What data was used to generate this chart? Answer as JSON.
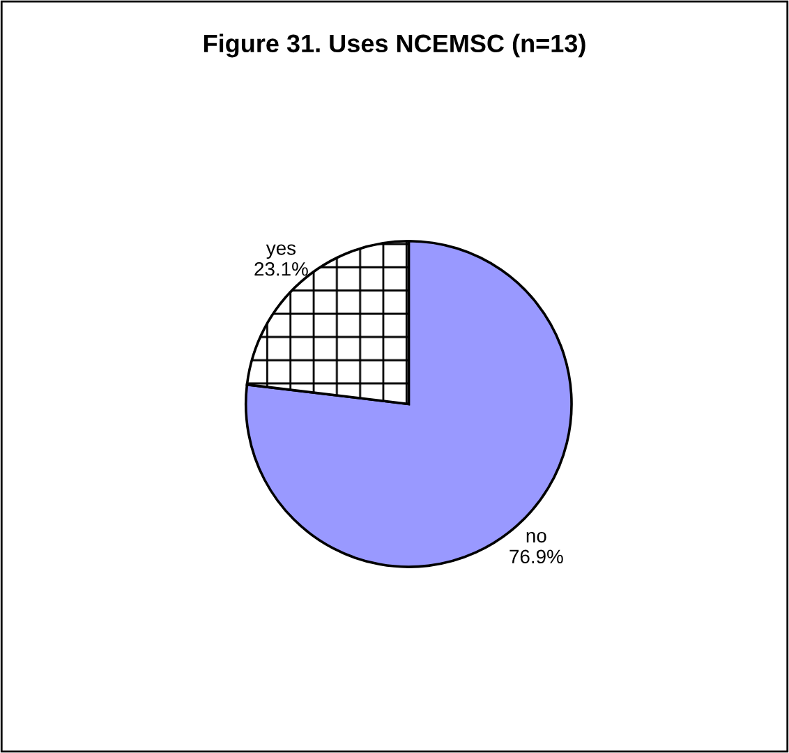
{
  "chart_data": {
    "type": "pie",
    "title": "Figure 31. Uses NCEMSC (n=13)",
    "categories": [
      "no",
      "yes"
    ],
    "values": [
      76.9,
      23.1
    ],
    "value_labels": [
      "76.9%",
      "23.1%"
    ],
    "colors": [
      "#9999ff",
      "#ffffff"
    ],
    "legend": false
  }
}
